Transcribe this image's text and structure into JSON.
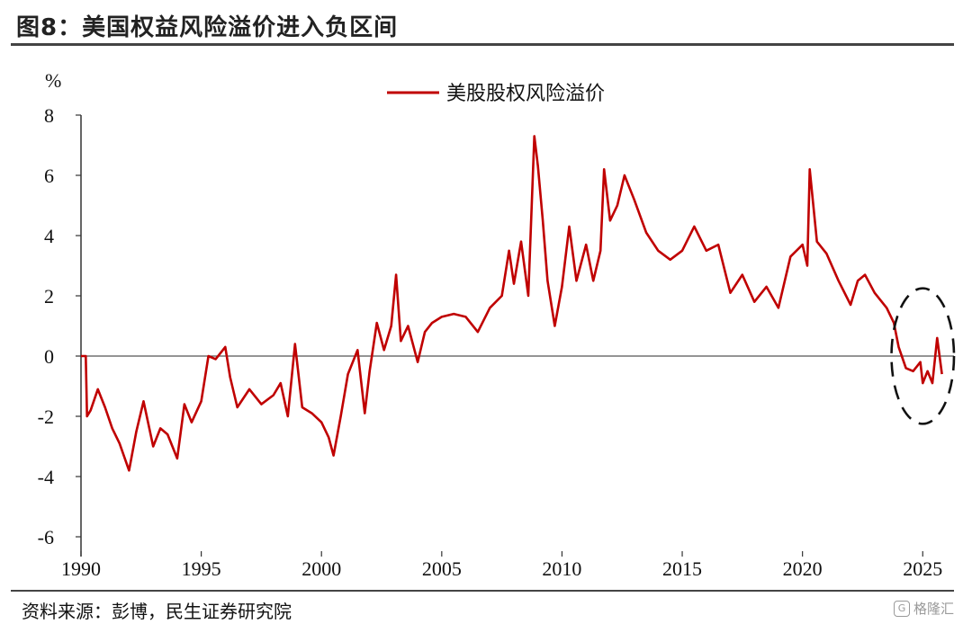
{
  "header": {
    "title": "图8：美国权益风险溢价进入负区间"
  },
  "footer": {
    "source": "资料来源：彭博，民生证券研究院",
    "watermark": "格隆汇"
  },
  "colors": {
    "series": "#c00000",
    "axis": "#333333",
    "annotation": "#111111"
  },
  "chart_data": {
    "type": "line",
    "ylabel": "%",
    "xlabel": "",
    "ylim": [
      -6,
      8
    ],
    "yticks": [
      "8",
      "6",
      "4",
      "2",
      "0",
      "-2",
      "-4",
      "-6"
    ],
    "xlim": [
      1990,
      2026.3
    ],
    "xticks": [
      "1990",
      "1995",
      "2000",
      "2005",
      "2010",
      "2015",
      "2020",
      "2025"
    ],
    "legend_position": "top-center",
    "series": [
      {
        "name": "美股股权风险溢价",
        "x": [
          1990.0,
          1990.2,
          1990.25,
          1990.4,
          1990.7,
          1991.0,
          1991.3,
          1991.6,
          1992.0,
          1992.3,
          1992.6,
          1993.0,
          1993.3,
          1993.6,
          1994.0,
          1994.3,
          1994.6,
          1995.0,
          1995.3,
          1995.6,
          1996.0,
          1996.2,
          1996.5,
          1997.0,
          1997.5,
          1998.0,
          1998.3,
          1998.6,
          1998.9,
          1999.2,
          1999.6,
          2000.0,
          2000.3,
          2000.5,
          2000.8,
          2001.1,
          2001.5,
          2001.8,
          2002.0,
          2002.3,
          2002.6,
          2002.9,
          2003.1,
          2003.3,
          2003.6,
          2004.0,
          2004.3,
          2004.6,
          2005.0,
          2005.5,
          2006.0,
          2006.5,
          2007.0,
          2007.5,
          2007.8,
          2008.0,
          2008.3,
          2008.6,
          2008.85,
          2009.0,
          2009.2,
          2009.4,
          2009.7,
          2010.0,
          2010.3,
          2010.6,
          2011.0,
          2011.3,
          2011.6,
          2011.75,
          2012.0,
          2012.3,
          2012.6,
          2013.0,
          2013.5,
          2014.0,
          2014.5,
          2015.0,
          2015.5,
          2016.0,
          2016.5,
          2017.0,
          2017.5,
          2018.0,
          2018.5,
          2019.0,
          2019.5,
          2020.0,
          2020.2,
          2020.3,
          2020.6,
          2021.0,
          2021.5,
          2022.0,
          2022.3,
          2022.6,
          2023.0,
          2023.5,
          2023.8,
          2024.0,
          2024.3,
          2024.6,
          2024.9,
          2025.0,
          2025.2,
          2025.4,
          2025.6,
          2025.8
        ],
        "values": [
          0.0,
          0.0,
          -2.0,
          -1.8,
          -1.1,
          -1.7,
          -2.4,
          -2.9,
          -3.8,
          -2.5,
          -1.5,
          -3.0,
          -2.4,
          -2.6,
          -3.4,
          -1.6,
          -2.2,
          -1.5,
          0.0,
          -0.1,
          0.3,
          -0.7,
          -1.7,
          -1.1,
          -1.6,
          -1.3,
          -0.9,
          -2.0,
          0.4,
          -1.7,
          -1.9,
          -2.2,
          -2.7,
          -3.3,
          -2.0,
          -0.6,
          0.2,
          -1.9,
          -0.5,
          1.1,
          0.2,
          1.0,
          2.7,
          0.5,
          1.0,
          -0.2,
          0.8,
          1.1,
          1.3,
          1.4,
          1.3,
          0.8,
          1.6,
          2.0,
          3.5,
          2.4,
          3.8,
          2.0,
          7.3,
          6.3,
          4.5,
          2.5,
          1.0,
          2.3,
          4.3,
          2.5,
          3.7,
          2.5,
          3.5,
          6.2,
          4.5,
          5.0,
          6.0,
          5.2,
          4.1,
          3.5,
          3.2,
          3.5,
          4.3,
          3.5,
          3.7,
          2.1,
          2.7,
          1.8,
          2.3,
          1.6,
          3.3,
          3.7,
          3.0,
          6.2,
          3.8,
          3.4,
          2.5,
          1.7,
          2.5,
          2.7,
          2.1,
          1.6,
          1.1,
          0.3,
          -0.4,
          -0.5,
          -0.2,
          -0.9,
          -0.5,
          -0.9,
          0.6,
          -0.6
        ]
      }
    ],
    "annotations": [
      {
        "type": "dashed-ellipse",
        "cx": 2025.0,
        "cy": 0.0,
        "rx": 1.3,
        "ry": 2.25
      }
    ]
  }
}
